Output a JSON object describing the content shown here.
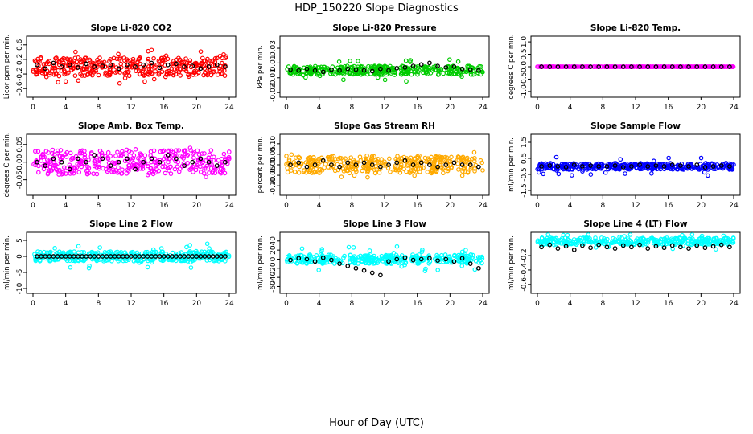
{
  "figure": {
    "title": "HDP_150220  Slope Diagnostics",
    "xlabel": "Hour of Day (UTC)"
  },
  "chart_data": [
    {
      "type": "scatter",
      "title": "Slope Li-820 CO2",
      "ylabel": "Licor ppm per min.",
      "xlim": [
        0,
        24
      ],
      "ylim": [
        -0.75,
        0.75
      ],
      "xticks": [
        0,
        4,
        8,
        12,
        16,
        20,
        24
      ],
      "yticks": [
        -0.6,
        -0.2,
        0.2,
        0.6
      ],
      "yticklabels": [
        "-0.6",
        "-0.2",
        "0.2",
        "0.6"
      ],
      "color": "#ff0000",
      "highlight_color": "#000000",
      "scatter_y": 0.25,
      "sparse_y": 0.5,
      "series": [
        {
          "x": [
            0.5,
            1.5,
            2.5,
            3.5,
            4.5,
            5.5,
            6.5,
            7.5,
            8.5,
            9.5,
            10.5,
            11.5,
            12.5,
            13.5,
            14.5,
            15.5,
            16.5,
            17.5,
            18.5,
            19.5,
            20.5,
            21.5,
            22.5,
            23.5
          ],
          "y": [
            0.05,
            -0.05,
            0.1,
            0.0,
            0.05,
            -0.02,
            0.08,
            0.0,
            0.02,
            0.05,
            -0.05,
            0.05,
            0.0,
            0.05,
            0.1,
            -0.03,
            0.05,
            0.08,
            0.0,
            0.02,
            -0.05,
            0.0,
            0.05,
            0.0
          ]
        }
      ]
    },
    {
      "type": "scatter",
      "title": "Slope Li-820 Pressure",
      "ylabel": "kPa per min.",
      "xlim": [
        0,
        24
      ],
      "ylim": [
        -0.032,
        0.042
      ],
      "xticks": [
        0,
        4,
        8,
        12,
        16,
        20,
        24
      ],
      "yticks": [
        -0.03,
        -0.01,
        0.01,
        0.03
      ],
      "yticklabels": [
        "-0.03",
        "-0.01",
        "0.01",
        "0.03"
      ],
      "color": "#00cc00",
      "highlight_color": "#000000",
      "scatter_y": 0.006,
      "sparse_y": 0.015,
      "series": [
        {
          "x": [
            0.5,
            1.5,
            2.5,
            3.5,
            4.5,
            5.5,
            6.5,
            7.5,
            8.5,
            9.5,
            10.5,
            11.5,
            12.5,
            13.5,
            14.5,
            15.5,
            16.5,
            17.5,
            18.5,
            19.5,
            20.5,
            21.5,
            22.5,
            23.5
          ],
          "y": [
            0.001,
            0.0,
            0.002,
            0.0,
            -0.002,
            0.001,
            0.0,
            0.002,
            0.001,
            0.0,
            -0.001,
            0.002,
            0.0,
            0.003,
            0.004,
            0.006,
            0.008,
            0.01,
            0.006,
            0.004,
            0.005,
            0.002,
            0.001,
            0.0
          ]
        }
      ]
    },
    {
      "type": "scatter",
      "title": "Slope Li-820 Temp.",
      "ylabel": "degrees C per min.",
      "xlim": [
        0,
        24
      ],
      "ylim": [
        -1.1,
        1.1
      ],
      "xticks": [
        0,
        4,
        8,
        12,
        16,
        20,
        24
      ],
      "yticks": [
        -1.0,
        -0.5,
        0.0,
        0.5,
        1.0
      ],
      "yticklabels": [
        "-1.0",
        "-0.5",
        "0.0",
        "0.5",
        "1.0"
      ],
      "color": "#ff00ff",
      "highlight_color": "#000000",
      "scatter_y": 0.0,
      "sparse_y": 0.0,
      "series": [
        {
          "x": [
            0.5,
            1.5,
            2.5,
            3.5,
            4.5,
            5.5,
            6.5,
            7.5,
            8.5,
            9.5,
            10.5,
            11.5,
            12.5,
            13.5,
            14.5,
            15.5,
            16.5,
            17.5,
            18.5,
            19.5,
            20.5,
            21.5,
            22.5,
            23.5
          ],
          "y": [
            0,
            0,
            0,
            0,
            0,
            0,
            0,
            0,
            0,
            0,
            0,
            0,
            0,
            0,
            0,
            0,
            0,
            0,
            0,
            0,
            0,
            0,
            0,
            0
          ]
        }
      ]
    },
    {
      "type": "scatter",
      "title": "Slope Amb. Box Temp.",
      "ylabel": "degrees C per min.",
      "xlim": [
        0,
        24
      ],
      "ylim": [
        -0.085,
        0.07
      ],
      "xticks": [
        0,
        4,
        8,
        12,
        16,
        20,
        24
      ],
      "yticks": [
        -0.05,
        0.0,
        0.05
      ],
      "yticklabels": [
        "-0.05",
        "0.00",
        "0.05"
      ],
      "color": "#ff00ff",
      "highlight_color": "#000000",
      "scatter_y": 0.035,
      "sparse_y": 0.045,
      "series": [
        {
          "x": [
            0.5,
            1.5,
            2.5,
            3.5,
            4.5,
            5.5,
            6.5,
            7.5,
            8.5,
            9.5,
            10.5,
            11.5,
            12.5,
            13.5,
            14.5,
            15.5,
            16.5,
            17.5,
            18.5,
            19.5,
            20.5,
            21.5,
            22.5,
            23.5
          ],
          "y": [
            0.0,
            -0.01,
            0.01,
            0.0,
            -0.02,
            0.01,
            0.0,
            0.02,
            0.01,
            -0.01,
            0.0,
            0.01,
            -0.02,
            0.0,
            0.01,
            0.0,
            0.02,
            0.01,
            -0.01,
            0.0,
            0.01,
            0.0,
            -0.01,
            0.0
          ]
        }
      ]
    },
    {
      "type": "scatter",
      "title": "Slope Gas Stream RH",
      "ylabel": "percent per min.",
      "xlim": [
        0,
        24
      ],
      "ylim": [
        -0.13,
        0.13
      ],
      "xticks": [
        0,
        4,
        8,
        12,
        16,
        20,
        24
      ],
      "yticks": [
        -0.1,
        -0.05,
        0.0,
        0.05,
        0.1
      ],
      "yticklabels": [
        "-0.10",
        "-0.05",
        "0.00",
        "0.05",
        "0.10"
      ],
      "color": "#ffaa00",
      "highlight_color": "#000000",
      "scatter_y": 0.04,
      "sparse_y": 0.06,
      "series": [
        {
          "x": [
            0.5,
            1.5,
            2.5,
            3.5,
            4.5,
            5.5,
            6.5,
            7.5,
            8.5,
            9.5,
            10.5,
            11.5,
            12.5,
            13.5,
            14.5,
            15.5,
            16.5,
            17.5,
            18.5,
            19.5,
            20.5,
            21.5,
            22.5,
            23.5
          ],
          "y": [
            0.0,
            0.01,
            -0.01,
            0.0,
            0.02,
            0.0,
            -0.01,
            0.01,
            0.0,
            0.01,
            0.0,
            -0.01,
            0.0,
            0.01,
            0.02,
            0.0,
            0.01,
            0.0,
            -0.01,
            0.0,
            0.01,
            0.0,
            0.0,
            -0.01
          ]
        }
      ]
    },
    {
      "type": "scatter",
      "title": "Slope Sample Flow",
      "ylabel": "ml/min per min.",
      "xlim": [
        0,
        24
      ],
      "ylim": [
        -1.6,
        1.8
      ],
      "xticks": [
        0,
        4,
        8,
        12,
        16,
        20,
        24
      ],
      "yticks": [
        -1.5,
        -0.5,
        0.5,
        1.5
      ],
      "yticklabels": [
        "-1.5",
        "-0.5",
        "0.5",
        "1.5"
      ],
      "color": "#0000ff",
      "highlight_color": "#000000",
      "scatter_y": 0.2,
      "sparse_y": 0.6,
      "series": [
        {
          "x": [
            0.5,
            1.5,
            2.5,
            3.5,
            4.5,
            5.5,
            6.5,
            7.5,
            8.5,
            9.5,
            10.5,
            11.5,
            12.5,
            13.5,
            14.5,
            15.5,
            16.5,
            17.5,
            18.5,
            19.5,
            20.5,
            21.5,
            22.5,
            23.5
          ],
          "y": [
            0.0,
            0.05,
            0.0,
            -0.05,
            0.1,
            0.0,
            0.05,
            0.0,
            0.0,
            0.05,
            -0.05,
            0.0,
            0.1,
            0.0,
            0.05,
            0.0,
            0.1,
            0.05,
            0.0,
            0.1,
            -0.05,
            0.0,
            0.05,
            0.0
          ]
        }
      ]
    },
    {
      "type": "scatter",
      "title": "Slope Line 2 Flow",
      "ylabel": "ml/min per min.",
      "xlim": [
        0,
        24
      ],
      "ylim": [
        -10.5,
        6.5
      ],
      "xticks": [
        0,
        4,
        8,
        12,
        16,
        20,
        24
      ],
      "yticks": [
        -10,
        -5,
        0,
        5
      ],
      "yticklabels": [
        "-10",
        "-5",
        "0",
        "5"
      ],
      "color": "#00ffff",
      "highlight_color": "#000000",
      "scatter_y": 1.5,
      "sparse_y": 4.0,
      "series": [
        {
          "x": [
            0.5,
            1.0,
            1.5,
            2.0,
            2.5,
            3.0,
            3.5,
            4.0,
            4.5,
            5.0,
            5.5,
            6.0,
            6.5,
            7.0,
            7.5,
            8.0,
            8.5,
            9.0,
            9.5,
            10.0,
            10.5,
            11.0,
            11.5,
            12.0,
            12.5,
            13.0,
            13.5,
            14.0,
            14.5,
            15.0,
            15.5,
            16.0,
            16.5,
            17.0,
            17.5,
            18.0,
            18.5,
            19.0,
            19.5,
            20.0,
            20.5,
            21.0,
            21.5,
            22.0,
            22.5,
            23.0,
            23.5
          ],
          "y": [
            0,
            0,
            0,
            0,
            0,
            0,
            0,
            0,
            0,
            0,
            0,
            0,
            0,
            0,
            0,
            0,
            0,
            0,
            0,
            0,
            0,
            0,
            0,
            0,
            0,
            0,
            0,
            0,
            0,
            0,
            0,
            0,
            0,
            0,
            0,
            0,
            0,
            0,
            0,
            0,
            0,
            0,
            0,
            0,
            0,
            0,
            0
          ]
        }
      ]
    },
    {
      "type": "scatter",
      "title": "Slope Line 3 Flow",
      "ylabel": "ml/min per min.",
      "xlim": [
        0,
        24
      ],
      "ylim": [
        -68,
        52
      ],
      "xticks": [
        0,
        4,
        8,
        12,
        16,
        20,
        24
      ],
      "yticks": [
        -60,
        -40,
        -20,
        0,
        20,
        40
      ],
      "yticklabels": [
        "-60",
        "-40",
        "-20",
        "0",
        "20",
        "40"
      ],
      "color": "#00ffff",
      "highlight_color": "#000000",
      "scatter_y": 10,
      "sparse_y": 28,
      "series": [
        {
          "x": [
            0.5,
            1.5,
            2.5,
            3.5,
            4.5,
            5.5,
            6.5,
            7.5,
            8.5,
            9.5,
            10.5,
            11.5,
            12.5,
            13.5,
            14.5,
            15.5,
            16.5,
            17.5,
            18.5,
            19.5,
            20.5,
            21.5,
            22.5,
            23.5
          ],
          "y": [
            -2,
            2,
            0,
            -5,
            3,
            -2,
            -10,
            -15,
            -20,
            -25,
            -30,
            -35,
            -5,
            0,
            3,
            -2,
            0,
            2,
            -3,
            0,
            -5,
            2,
            -10,
            -20
          ]
        }
      ]
    },
    {
      "type": "scatter",
      "title": "Slope Line 4 (LT) Flow",
      "ylabel": "ml/min per min.",
      "xlim": [
        0,
        24
      ],
      "ylim": [
        -0.68,
        0.08
      ],
      "xticks": [
        0,
        4,
        8,
        12,
        16,
        20,
        24
      ],
      "yticks": [
        -0.6,
        -0.4,
        -0.2
      ],
      "yticklabels": [
        "-0.6",
        "-0.4",
        "-0.2"
      ],
      "color": "#00ffff",
      "highlight_color": "#000000",
      "scatter_y": 0.05,
      "sparse_y": 0.12,
      "series": [
        {
          "x": [
            0.5,
            1.5,
            2.5,
            3.5,
            4.5,
            5.5,
            6.5,
            7.5,
            8.5,
            9.5,
            10.5,
            11.5,
            12.5,
            13.5,
            14.5,
            15.5,
            16.5,
            17.5,
            18.5,
            19.5,
            20.5,
            21.5,
            22.5,
            23.5
          ],
          "y": [
            -0.08,
            -0.05,
            -0.1,
            -0.07,
            -0.12,
            -0.06,
            -0.09,
            -0.05,
            -0.08,
            -0.1,
            -0.06,
            -0.08,
            -0.05,
            -0.1,
            -0.07,
            -0.09,
            -0.06,
            -0.08,
            -0.1,
            -0.06,
            -0.09,
            -0.07,
            -0.05,
            -0.08
          ]
        }
      ]
    }
  ]
}
